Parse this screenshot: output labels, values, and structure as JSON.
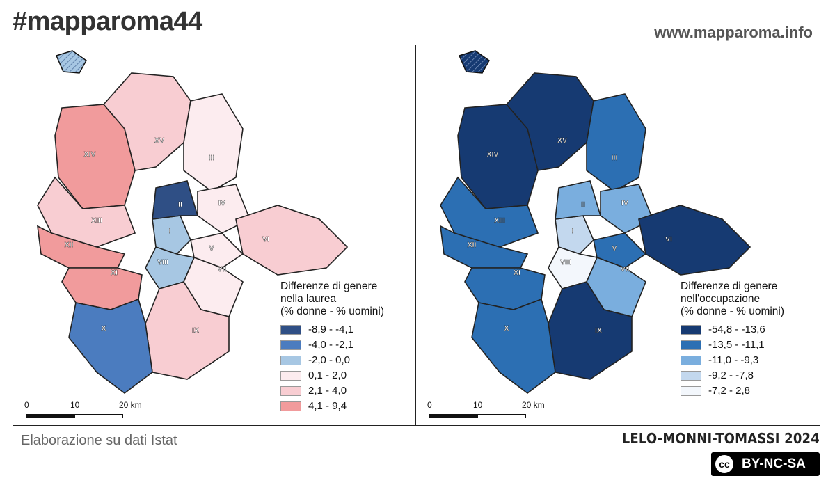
{
  "header": {
    "hashtag": "#mapparoma44",
    "site": "www.mapparoma.info"
  },
  "footer": {
    "source": "Elaborazione su dati Istat",
    "authors": "LELO-MONNI-TOMASSI 2024",
    "license": "BY-NC-SA",
    "license_icon": "creative-commons-icon"
  },
  "maps": [
    {
      "legend_title": [
        "Differenze di genere",
        "nella laurea",
        "(% donne - % uomini)"
      ],
      "classes": [
        {
          "label": "-8,9 - -4,1",
          "color": "#2f4f85"
        },
        {
          "label": "-4,0 - -2,1",
          "color": "#4b7cbf"
        },
        {
          "label": "-2,0 - 0,0",
          "color": "#a7c7e3"
        },
        {
          "label": "0,1 - 2,0",
          "color": "#fcecef"
        },
        {
          "label": "2,1 - 4,0",
          "color": "#f8cdd2"
        },
        {
          "label": "4,1 - 9,4",
          "color": "#f19b9c"
        }
      ],
      "scale": {
        "t0": "0",
        "t1": "10",
        "t2": "20 km"
      },
      "municipi": [
        "I",
        "II",
        "III",
        "IV",
        "V",
        "VI",
        "VII",
        "VIII",
        "IX",
        "X",
        "XI",
        "XII",
        "XIII",
        "XIV",
        "XV"
      ]
    },
    {
      "legend_title": [
        "Differenze di genere",
        "nell'occupazione",
        "(% donne - % uomini)"
      ],
      "classes": [
        {
          "label": "-54,8 - -13,6",
          "color": "#163a72"
        },
        {
          "label": "-13,5 - -11,1",
          "color": "#2c6fb3"
        },
        {
          "label": "-11,0 - -9,3",
          "color": "#7aaede"
        },
        {
          "label": "-9,2 - -7,8",
          "color": "#c3d8ee"
        },
        {
          "label": "-7,2 - 2,8",
          "color": "#f3f7fc"
        }
      ],
      "scale": {
        "t0": "0",
        "t1": "10",
        "t2": "20 km"
      },
      "municipi": [
        "I",
        "II",
        "III",
        "IV",
        "V",
        "VI",
        "VII",
        "VIII",
        "IX",
        "X",
        "XI",
        "XII",
        "XIII",
        "XIV",
        "XV"
      ]
    }
  ]
}
